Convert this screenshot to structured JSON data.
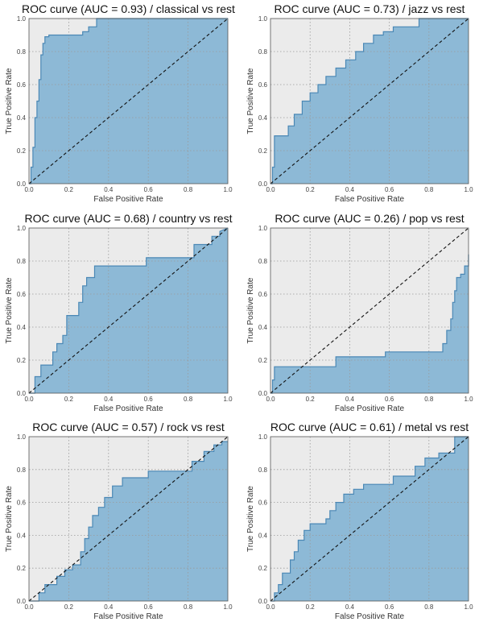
{
  "colors": {
    "plot_bg": "#ebebeb",
    "fill": "#8db9d6",
    "curve": "#4b88b5",
    "chance_line": "#111111",
    "grid": "#9a9a9a"
  },
  "chart_data": [
    {
      "type": "area",
      "title": "ROC curve (AUC = 0.93) / classical vs rest",
      "xlabel": "False Positive Rate",
      "ylabel": "True Positive Rate",
      "xlim": [
        0,
        1
      ],
      "ylim": [
        0,
        1
      ],
      "xticks": [
        "0.0",
        "0.2",
        "0.4",
        "0.6",
        "0.8",
        "1.0"
      ],
      "yticks": [
        "0.0",
        "0.2",
        "0.4",
        "0.6",
        "0.8",
        "1.0"
      ],
      "grid": true,
      "reference_line": "diagonal",
      "x": [
        0,
        0.01,
        0.01,
        0.02,
        0.02,
        0.03,
        0.03,
        0.04,
        0.04,
        0.05,
        0.05,
        0.06,
        0.06,
        0.07,
        0.07,
        0.08,
        0.08,
        0.1,
        0.1,
        0.27,
        0.27,
        0.3,
        0.3,
        0.34,
        0.34,
        1
      ],
      "y": [
        0,
        0,
        0.1,
        0.1,
        0.22,
        0.22,
        0.4,
        0.4,
        0.5,
        0.5,
        0.63,
        0.63,
        0.78,
        0.78,
        0.85,
        0.85,
        0.89,
        0.89,
        0.9,
        0.9,
        0.92,
        0.92,
        0.95,
        0.95,
        1,
        1
      ]
    },
    {
      "type": "area",
      "title": "ROC curve (AUC = 0.73) / jazz vs rest",
      "xlabel": "False Positive Rate",
      "ylabel": "True Positive Rate",
      "xlim": [
        0,
        1
      ],
      "ylim": [
        0,
        1
      ],
      "xticks": [
        "0.0",
        "0.2",
        "0.4",
        "0.6",
        "0.8",
        "1.0"
      ],
      "yticks": [
        "0.0",
        "0.2",
        "0.4",
        "0.6",
        "0.8",
        "1.0"
      ],
      "grid": true,
      "reference_line": "diagonal",
      "x": [
        0,
        0.01,
        0.01,
        0.02,
        0.02,
        0.09,
        0.09,
        0.12,
        0.12,
        0.16,
        0.16,
        0.2,
        0.2,
        0.24,
        0.24,
        0.28,
        0.28,
        0.33,
        0.33,
        0.38,
        0.38,
        0.43,
        0.43,
        0.47,
        0.47,
        0.52,
        0.52,
        0.57,
        0.57,
        0.62,
        0.62,
        0.75,
        0.75,
        0.85,
        0.85,
        1
      ],
      "y": [
        0,
        0,
        0.1,
        0.1,
        0.29,
        0.29,
        0.35,
        0.35,
        0.42,
        0.42,
        0.5,
        0.5,
        0.55,
        0.55,
        0.6,
        0.6,
        0.65,
        0.65,
        0.7,
        0.7,
        0.75,
        0.75,
        0.8,
        0.8,
        0.85,
        0.85,
        0.9,
        0.9,
        0.92,
        0.92,
        0.95,
        0.95,
        1,
        1,
        1,
        1
      ]
    },
    {
      "type": "area",
      "title": "ROC curve (AUC = 0.68) / country vs rest",
      "xlabel": "False Positive Rate",
      "ylabel": "True Positive Rate",
      "xlim": [
        0,
        1
      ],
      "ylim": [
        0,
        1
      ],
      "xticks": [
        "0.0",
        "0.2",
        "0.4",
        "0.6",
        "0.8",
        "1.0"
      ],
      "yticks": [
        "0.0",
        "0.2",
        "0.4",
        "0.6",
        "0.8",
        "1.0"
      ],
      "grid": true,
      "reference_line": "diagonal",
      "x": [
        0,
        0.03,
        0.03,
        0.06,
        0.06,
        0.12,
        0.12,
        0.14,
        0.14,
        0.17,
        0.17,
        0.19,
        0.19,
        0.25,
        0.25,
        0.27,
        0.27,
        0.29,
        0.29,
        0.33,
        0.33,
        0.59,
        0.59,
        0.83,
        0.83,
        0.92,
        0.92,
        0.96,
        0.96,
        1
      ],
      "y": [
        0,
        0,
        0.1,
        0.1,
        0.17,
        0.17,
        0.25,
        0.25,
        0.3,
        0.3,
        0.35,
        0.35,
        0.47,
        0.47,
        0.55,
        0.55,
        0.65,
        0.65,
        0.7,
        0.7,
        0.77,
        0.77,
        0.82,
        0.82,
        0.9,
        0.9,
        0.95,
        0.95,
        0.98,
        1
      ]
    },
    {
      "type": "area",
      "title": "ROC curve (AUC = 0.26) / pop vs rest",
      "xlabel": "False Positive Rate",
      "ylabel": "True Positive Rate",
      "xlim": [
        0,
        1
      ],
      "ylim": [
        0,
        1
      ],
      "xticks": [
        "0.0",
        "0.2",
        "0.4",
        "0.6",
        "0.8",
        "1.0"
      ],
      "yticks": [
        "0.0",
        "0.2",
        "0.4",
        "0.6",
        "0.8",
        "1.0"
      ],
      "grid": true,
      "reference_line": "diagonal",
      "x": [
        0,
        0.01,
        0.01,
        0.02,
        0.02,
        0.33,
        0.33,
        0.58,
        0.58,
        0.87,
        0.87,
        0.89,
        0.89,
        0.91,
        0.91,
        0.92,
        0.92,
        0.93,
        0.93,
        0.94,
        0.94,
        0.96,
        0.96,
        0.98,
        0.98,
        1,
        1
      ],
      "y": [
        0,
        0,
        0.08,
        0.08,
        0.16,
        0.16,
        0.22,
        0.22,
        0.25,
        0.25,
        0.3,
        0.3,
        0.38,
        0.38,
        0.45,
        0.45,
        0.55,
        0.55,
        0.62,
        0.62,
        0.7,
        0.7,
        0.72,
        0.72,
        0.77,
        0.77,
        0.84
      ]
    },
    {
      "type": "area",
      "title": "ROC curve (AUC = 0.57) / rock vs rest",
      "xlabel": "False Positive Rate",
      "ylabel": "True Positive Rate",
      "xlim": [
        0,
        1
      ],
      "ylim": [
        0,
        1
      ],
      "xticks": [
        "0.0",
        "0.2",
        "0.4",
        "0.6",
        "0.8",
        "1.0"
      ],
      "yticks": [
        "0.0",
        "0.2",
        "0.4",
        "0.6",
        "0.8",
        "1.0"
      ],
      "grid": true,
      "reference_line": "diagonal",
      "x": [
        0,
        0.05,
        0.05,
        0.08,
        0.08,
        0.14,
        0.14,
        0.18,
        0.18,
        0.22,
        0.22,
        0.26,
        0.26,
        0.28,
        0.28,
        0.3,
        0.3,
        0.32,
        0.32,
        0.35,
        0.35,
        0.38,
        0.38,
        0.42,
        0.42,
        0.47,
        0.47,
        0.6,
        0.6,
        0.82,
        0.82,
        0.88,
        0.88,
        0.93,
        0.93,
        0.97,
        0.97,
        1
      ],
      "y": [
        0,
        0,
        0.05,
        0.05,
        0.1,
        0.1,
        0.15,
        0.15,
        0.19,
        0.19,
        0.22,
        0.22,
        0.3,
        0.3,
        0.38,
        0.38,
        0.45,
        0.45,
        0.52,
        0.52,
        0.57,
        0.57,
        0.63,
        0.63,
        0.7,
        0.7,
        0.75,
        0.75,
        0.79,
        0.79,
        0.85,
        0.85,
        0.91,
        0.91,
        0.95,
        0.95,
        0.97,
        0.97
      ]
    },
    {
      "type": "area",
      "title": "ROC curve (AUC = 0.61) / metal vs rest",
      "xlabel": "False Positive Rate",
      "ylabel": "True Positive Rate",
      "xlim": [
        0,
        1
      ],
      "ylim": [
        0,
        1
      ],
      "xticks": [
        "0.0",
        "0.2",
        "0.4",
        "0.6",
        "0.8",
        "1.0"
      ],
      "yticks": [
        "0.0",
        "0.2",
        "0.4",
        "0.6",
        "0.8",
        "1.0"
      ],
      "grid": true,
      "reference_line": "diagonal",
      "x": [
        0,
        0.02,
        0.02,
        0.04,
        0.04,
        0.06,
        0.06,
        0.1,
        0.1,
        0.12,
        0.12,
        0.14,
        0.14,
        0.17,
        0.17,
        0.2,
        0.2,
        0.28,
        0.28,
        0.3,
        0.3,
        0.33,
        0.33,
        0.37,
        0.37,
        0.42,
        0.42,
        0.47,
        0.47,
        0.62,
        0.62,
        0.73,
        0.73,
        0.78,
        0.78,
        0.85,
        0.85,
        0.93,
        0.93,
        1
      ],
      "y": [
        0,
        0,
        0.05,
        0.05,
        0.1,
        0.1,
        0.17,
        0.17,
        0.25,
        0.25,
        0.3,
        0.3,
        0.37,
        0.37,
        0.43,
        0.43,
        0.47,
        0.47,
        0.5,
        0.5,
        0.55,
        0.55,
        0.6,
        0.6,
        0.65,
        0.65,
        0.68,
        0.68,
        0.71,
        0.71,
        0.76,
        0.76,
        0.82,
        0.82,
        0.87,
        0.87,
        0.9,
        0.9,
        1,
        1
      ]
    }
  ]
}
